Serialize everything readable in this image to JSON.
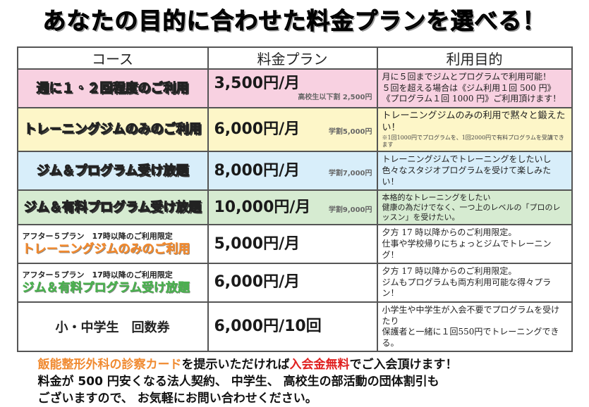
{
  "title": "あなたの目的に合わせた料金プランを選べる！",
  "headers": [
    "コース",
    "料金プラン",
    "利用目的"
  ],
  "colors": {
    "row1": "#f8d1e1",
    "row2": "#fdf6c8",
    "row3": "#d8eefa",
    "row4": "#d6ebd1",
    "orange": "#f08a30",
    "green": "#4caf50",
    "red": "#e02020"
  },
  "rows": [
    {
      "course": "週に１・２回程度のご利用",
      "price": "3,500円/月",
      "sub": "高校生以下割 2,500円",
      "desc": [
        "月に５回までジムとプログラムで利用可能！",
        "５回を超える場合は《ジム利用１回 500 円》",
        "《プログラム１回 1000 円》ご利用頂けます！"
      ]
    },
    {
      "course": "トレ－ニングジムのみのご利用",
      "price": "6,000円/月",
      "sub": "学割5,000円",
      "desc": [
        "トレーニングジムのみの利用で黙々と鍛えたい！"
      ],
      "note": "※1回1000円でプログラムを、1回2000円で有料プログラムを受講できます"
    },
    {
      "course": "ジム＆プログラム受け放題",
      "price": "8,000円/月",
      "sub": "学割7,000円",
      "desc": [
        "トレーニングジムでトレーニングをしたいし",
        "色々なスタジオプログラムを受けて楽しみたい！"
      ]
    },
    {
      "course": "ジム＆有料プログラム受け放題",
      "price": "10,000円/月",
      "sub": "学割9,000円",
      "desc": [
        "本格的なトレーニングをしたい",
        "健康の為だけでなく、一つ上のレベルの「プロのレッスン」を受けたい。"
      ]
    },
    {
      "label": "アフター５プラン　17時以降のご利用限定",
      "course": "トレ－ニングジムのみのご利用",
      "price": "5,000円/月",
      "desc": [
        "夕方 17 時以降からのご利用限定。",
        "仕事や学校帰りにちょっとジムでトレーニング！"
      ]
    },
    {
      "label": "アフター５プラン　17時以降のご利用限定",
      "course": "ジム＆有料プログラム受け放題",
      "price": "6,000円/月",
      "desc": [
        "夕方 17 時以降からのご利用限定。",
        "ジムもプログラムも両方利用可能な得々プラン！"
      ]
    },
    {
      "course": "小・中学生　回数券",
      "price": "6,000円/10回",
      "desc": [
        "小学生や中学生が入会不要でプログラムを受けたり",
        "保護者と一緒に１回550円でトレーニングできる。"
      ]
    }
  ],
  "footer": {
    "p1": "飯能整形外科の診察カード",
    "p2": "を提示いただければ",
    "p3": "入会金無料",
    "p4": "でご入会頂けます！",
    "line2": "料金が 500 円安くなる法人契約、 中学生、 高校生の部活動の団体割引も",
    "line3": "ございますので、 お気軽にお問い合わせください。"
  }
}
